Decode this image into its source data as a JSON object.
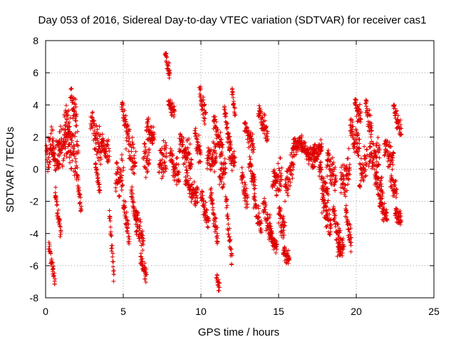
{
  "chart_data": {
    "type": "scatter",
    "title": "Day 053 of 2016, Sidereal Day-to-day VTEC variation (SDTVAR) for receiver cas1",
    "xlabel": "GPS time / hours",
    "ylabel": "SDTVAR / TECUs",
    "xlim": [
      0,
      25
    ],
    "ylim": [
      -8,
      8
    ],
    "xticks": [
      "0",
      "5",
      "10",
      "15",
      "20",
      "25"
    ],
    "yticks": [
      "-8",
      "-6",
      "-4",
      "-2",
      "0",
      "2",
      "4",
      "6",
      "8"
    ],
    "grid": true,
    "marker": "plus",
    "color": "#e00000",
    "series": [
      {
        "name": "SDTVAR",
        "tracks": [
          {
            "t": [
              0.0,
              0.5
            ],
            "y": [
              0.3,
              1.9
            ],
            "spread": 1.4
          },
          {
            "t": [
              0.2,
              0.6
            ],
            "y": [
              -4.8,
              -7.0
            ],
            "spread": 0.6
          },
          {
            "t": [
              0.4,
              0.9
            ],
            "y": [
              0.6,
              0.9
            ],
            "spread": 1.2
          },
          {
            "t": [
              0.6,
              1.0
            ],
            "y": [
              -1.5,
              -4.0
            ],
            "spread": 0.8
          },
          {
            "t": [
              0.8,
              1.6
            ],
            "y": [
              0.9,
              2.4
            ],
            "spread": 1.6
          },
          {
            "t": [
              1.2,
              2.1
            ],
            "y": [
              2.2,
              1.2
            ],
            "spread": 2.2
          },
          {
            "t": [
              1.6,
              2.0
            ],
            "y": [
              4.5,
              3.5
            ],
            "spread": 0.8
          },
          {
            "t": [
              2.0,
              2.3
            ],
            "y": [
              -0.5,
              -2.5
            ],
            "spread": 0.7
          },
          {
            "t": [
              2.9,
              3.6
            ],
            "y": [
              2.8,
              1.3
            ],
            "spread": 1.3
          },
          {
            "t": [
              3.2,
              3.5
            ],
            "y": [
              0.1,
              -1.2
            ],
            "spread": 0.6
          },
          {
            "t": [
              3.6,
              4.1
            ],
            "y": [
              1.4,
              1.2
            ],
            "spread": 0.9
          },
          {
            "t": [
              4.1,
              4.4
            ],
            "y": [
              -2.8,
              -6.7
            ],
            "spread": 0.8
          },
          {
            "t": [
              4.5,
              5.0
            ],
            "y": [
              -1.0,
              -0.2
            ],
            "spread": 1.4
          },
          {
            "t": [
              4.9,
              5.2
            ],
            "y": [
              3.9,
              2.8
            ],
            "spread": 0.7
          },
          {
            "t": [
              5.0,
              5.4
            ],
            "y": [
              -2.2,
              -4.2
            ],
            "spread": 1.0
          },
          {
            "t": [
              5.2,
              5.8
            ],
            "y": [
              1.8,
              0.5
            ],
            "spread": 1.3
          },
          {
            "t": [
              5.5,
              5.9
            ],
            "y": [
              -1.6,
              -3.6
            ],
            "spread": 0.9
          },
          {
            "t": [
              5.8,
              6.3
            ],
            "y": [
              -3.0,
              -4.5
            ],
            "spread": 0.9
          },
          {
            "t": [
              6.1,
              6.5
            ],
            "y": [
              -5.6,
              -6.6
            ],
            "spread": 0.6
          },
          {
            "t": [
              6.3,
              6.7
            ],
            "y": [
              0.2,
              1.2
            ],
            "spread": 1.6
          },
          {
            "t": [
              6.5,
              7.0
            ],
            "y": [
              2.6,
              2.0
            ],
            "spread": 0.8
          },
          {
            "t": [
              7.3,
              7.8
            ],
            "y": [
              0.1,
              1.1
            ],
            "spread": 1.2
          },
          {
            "t": [
              7.7,
              8.0
            ],
            "y": [
              6.9,
              6.0
            ],
            "spread": 0.6
          },
          {
            "t": [
              7.9,
              8.3
            ],
            "y": [
              4.0,
              3.6
            ],
            "spread": 0.5
          },
          {
            "t": [
              8.0,
              8.6
            ],
            "y": [
              0.7,
              -0.4
            ],
            "spread": 1.0
          },
          {
            "t": [
              8.6,
              9.4
            ],
            "y": [
              1.3,
              0.8
            ],
            "spread": 1.1
          },
          {
            "t": [
              9.0,
              9.8
            ],
            "y": [
              -0.8,
              -1.6
            ],
            "spread": 1.0
          },
          {
            "t": [
              9.6,
              10.0
            ],
            "y": [
              1.8,
              1.0
            ],
            "spread": 1.0
          },
          {
            "t": [
              9.9,
              10.3
            ],
            "y": [
              4.7,
              3.2
            ],
            "spread": 0.8
          },
          {
            "t": [
              10.0,
              10.5
            ],
            "y": [
              -1.8,
              -3.2
            ],
            "spread": 0.7
          },
          {
            "t": [
              10.4,
              11.0
            ],
            "y": [
              0.4,
              0.9
            ],
            "spread": 1.1
          },
          {
            "t": [
              10.6,
              11.1
            ],
            "y": [
              -1.6,
              -4.3
            ],
            "spread": 0.8
          },
          {
            "t": [
              10.8,
              11.4
            ],
            "y": [
              2.8,
              1.2
            ],
            "spread": 0.9
          },
          {
            "t": [
              11.0,
              11.2
            ],
            "y": [
              -6.8,
              -7.4
            ],
            "spread": 0.4
          },
          {
            "t": [
              11.2,
              11.6
            ],
            "y": [
              -0.8,
              0.5
            ],
            "spread": 1.2
          },
          {
            "t": [
              11.5,
              11.9
            ],
            "y": [
              3.5,
              1.5
            ],
            "spread": 0.8
          },
          {
            "t": [
              11.6,
              12.0
            ],
            "y": [
              -2.0,
              -5.6
            ],
            "spread": 0.8
          },
          {
            "t": [
              11.8,
              12.2
            ],
            "y": [
              0.7,
              0.9
            ],
            "spread": 1.1
          },
          {
            "t": [
              12.0,
              12.2
            ],
            "y": [
              4.9,
              3.5
            ],
            "spread": 0.5
          },
          {
            "t": [
              12.6,
              13.0
            ],
            "y": [
              -0.4,
              -2.0
            ],
            "spread": 0.8
          },
          {
            "t": [
              12.8,
              13.4
            ],
            "y": [
              2.5,
              1.6
            ],
            "spread": 0.8
          },
          {
            "t": [
              13.1,
              13.5
            ],
            "y": [
              0.3,
              -0.9
            ],
            "spread": 0.7
          },
          {
            "t": [
              13.4,
              13.9
            ],
            "y": [
              -2.2,
              -3.6
            ],
            "spread": 0.9
          },
          {
            "t": [
              13.7,
              14.3
            ],
            "y": [
              3.5,
              2.2
            ],
            "spread": 0.8
          },
          {
            "t": [
              14.0,
              14.5
            ],
            "y": [
              -2.4,
              -3.6
            ],
            "spread": 1.0
          },
          {
            "t": [
              14.4,
              14.9
            ],
            "y": [
              -4.2,
              -4.8
            ],
            "spread": 0.6
          },
          {
            "t": [
              14.6,
              15.2
            ],
            "y": [
              -1.0,
              -0.3
            ],
            "spread": 1.2
          },
          {
            "t": [
              15.0,
              15.4
            ],
            "y": [
              -3.0,
              -3.7
            ],
            "spread": 0.9
          },
          {
            "t": [
              15.3,
              15.7
            ],
            "y": [
              -5.2,
              -5.6
            ],
            "spread": 0.5
          },
          {
            "t": [
              15.4,
              16.0
            ],
            "y": [
              -1.4,
              0.6
            ],
            "spread": 1.2
          },
          {
            "t": [
              15.9,
              16.5
            ],
            "y": [
              1.3,
              1.8
            ],
            "spread": 0.6
          },
          {
            "t": [
              16.5,
              17.4
            ],
            "y": [
              1.2,
              0.6
            ],
            "spread": 0.7
          },
          {
            "t": [
              17.2,
              17.8
            ],
            "y": [
              0.9,
              1.4
            ],
            "spread": 0.6
          },
          {
            "t": [
              17.6,
              18.2
            ],
            "y": [
              -0.3,
              -1.5
            ],
            "spread": 1.2
          },
          {
            "t": [
              17.8,
              18.4
            ],
            "y": [
              -2.3,
              -3.4
            ],
            "spread": 1.0
          },
          {
            "t": [
              18.1,
              18.7
            ],
            "y": [
              0.4,
              -0.6
            ],
            "spread": 1.2
          },
          {
            "t": [
              18.5,
              19.0
            ],
            "y": [
              -3.0,
              -4.5
            ],
            "spread": 1.0
          },
          {
            "t": [
              18.8,
              19.2
            ],
            "y": [
              -5.2,
              -4.6
            ],
            "spread": 0.7
          },
          {
            "t": [
              19.0,
              19.6
            ],
            "y": [
              -1.2,
              0.2
            ],
            "spread": 1.4
          },
          {
            "t": [
              19.3,
              19.7
            ],
            "y": [
              -2.6,
              -4.6
            ],
            "spread": 0.8
          },
          {
            "t": [
              19.6,
              20.2
            ],
            "y": [
              2.4,
              1.5
            ],
            "spread": 1.0
          },
          {
            "t": [
              19.9,
              20.3
            ],
            "y": [
              4.0,
              3.2
            ],
            "spread": 0.8
          },
          {
            "t": [
              20.2,
              20.7
            ],
            "y": [
              -0.8,
              0.8
            ],
            "spread": 1.4
          },
          {
            "t": [
              20.6,
              21.0
            ],
            "y": [
              3.8,
              2.4
            ],
            "spread": 0.9
          },
          {
            "t": [
              20.8,
              21.5
            ],
            "y": [
              0.5,
              1.1
            ],
            "spread": 1.2
          },
          {
            "t": [
              21.2,
              21.7
            ],
            "y": [
              -0.8,
              -1.2
            ],
            "spread": 0.9
          },
          {
            "t": [
              21.5,
              22.0
            ],
            "y": [
              -2.2,
              -3.0
            ],
            "spread": 0.7
          },
          {
            "t": [
              21.8,
              22.4
            ],
            "y": [
              1.2,
              0.7
            ],
            "spread": 1.0
          },
          {
            "t": [
              22.2,
              22.6
            ],
            "y": [
              -0.9,
              -1.4
            ],
            "spread": 0.7
          },
          {
            "t": [
              22.4,
              22.9
            ],
            "y": [
              3.6,
              2.5
            ],
            "spread": 0.8
          },
          {
            "t": [
              22.5,
              22.9
            ],
            "y": [
              -2.8,
              -3.1
            ],
            "spread": 0.5
          }
        ]
      }
    ]
  }
}
